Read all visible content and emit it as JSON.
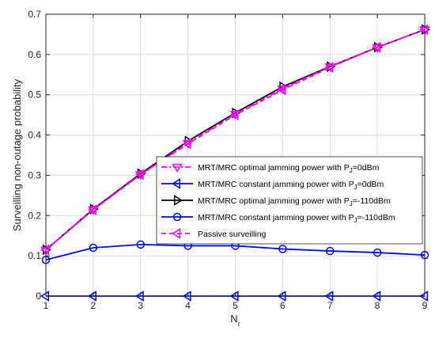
{
  "chart_data": {
    "type": "line",
    "xlabel": "N",
    "xlabel_sub": "r",
    "ylabel": "Surveilling non-outage probability",
    "xlim": [
      1,
      9
    ],
    "ylim": [
      0,
      0.7
    ],
    "xticks": [
      1,
      2,
      3,
      4,
      5,
      6,
      7,
      8,
      9
    ],
    "yticks": [
      0,
      0.1,
      0.2,
      0.3,
      0.4,
      0.5,
      0.6,
      0.7
    ],
    "grid": true,
    "legend_position": "center-right",
    "x": [
      1,
      2,
      3,
      4,
      5,
      6,
      7,
      8,
      9
    ],
    "series": [
      {
        "name": "MRT/MRC optimal jamming power with P_J=0dBm",
        "legend_main": "MRT/MRC optimal jamming power with P",
        "legend_sub": "J",
        "legend_tail": "=0dBm",
        "color": "#ff00ff",
        "dash": "dashdot",
        "marker": "triangle-down",
        "values": [
          0.115,
          0.215,
          0.302,
          0.38,
          0.452,
          0.515,
          0.57,
          0.618,
          0.662
        ]
      },
      {
        "name": "MRT/MRC constant jamming power with P_J=0dBm",
        "legend_main": "MRT/MRC constant jamming power with P",
        "legend_sub": "J",
        "legend_tail": "=0dBm",
        "color": "#0000ff",
        "dash": "solid",
        "marker": "triangle-left",
        "values": [
          0,
          0,
          0,
          0,
          0,
          0,
          0,
          0,
          0
        ]
      },
      {
        "name": "MRT/MRC optimal jamming power with P_J=-110dBm",
        "legend_main": "MRT/MRC optimal jamming power with P",
        "legend_sub": "J",
        "legend_tail": "=-110dBm",
        "color": "#000000",
        "dash": "solid",
        "marker": "triangle-right",
        "values": [
          0.115,
          0.216,
          0.304,
          0.385,
          0.455,
          0.52,
          0.57,
          0.618,
          0.662
        ]
      },
      {
        "name": "MRT/MRC constant jamming power with P_J=-110dBm",
        "legend_main": "MRT/MRC constant jamming power with P",
        "legend_sub": "J",
        "legend_tail": "=-110dBm",
        "color": "#0000ff",
        "dash": "solid",
        "marker": "circle",
        "values": [
          0.09,
          0.12,
          0.128,
          0.125,
          0.125,
          0.117,
          0.112,
          0.108,
          0.102
        ]
      },
      {
        "name": "Passive surveilling",
        "legend_main": "Passive surveilling",
        "legend_sub": "",
        "legend_tail": "",
        "color": "#ff00ff",
        "dash": "dashed",
        "marker": "triangle-left",
        "values": [
          0.115,
          0.214,
          0.302,
          0.378,
          0.45,
          0.512,
          0.568,
          0.618,
          0.662
        ]
      }
    ]
  }
}
